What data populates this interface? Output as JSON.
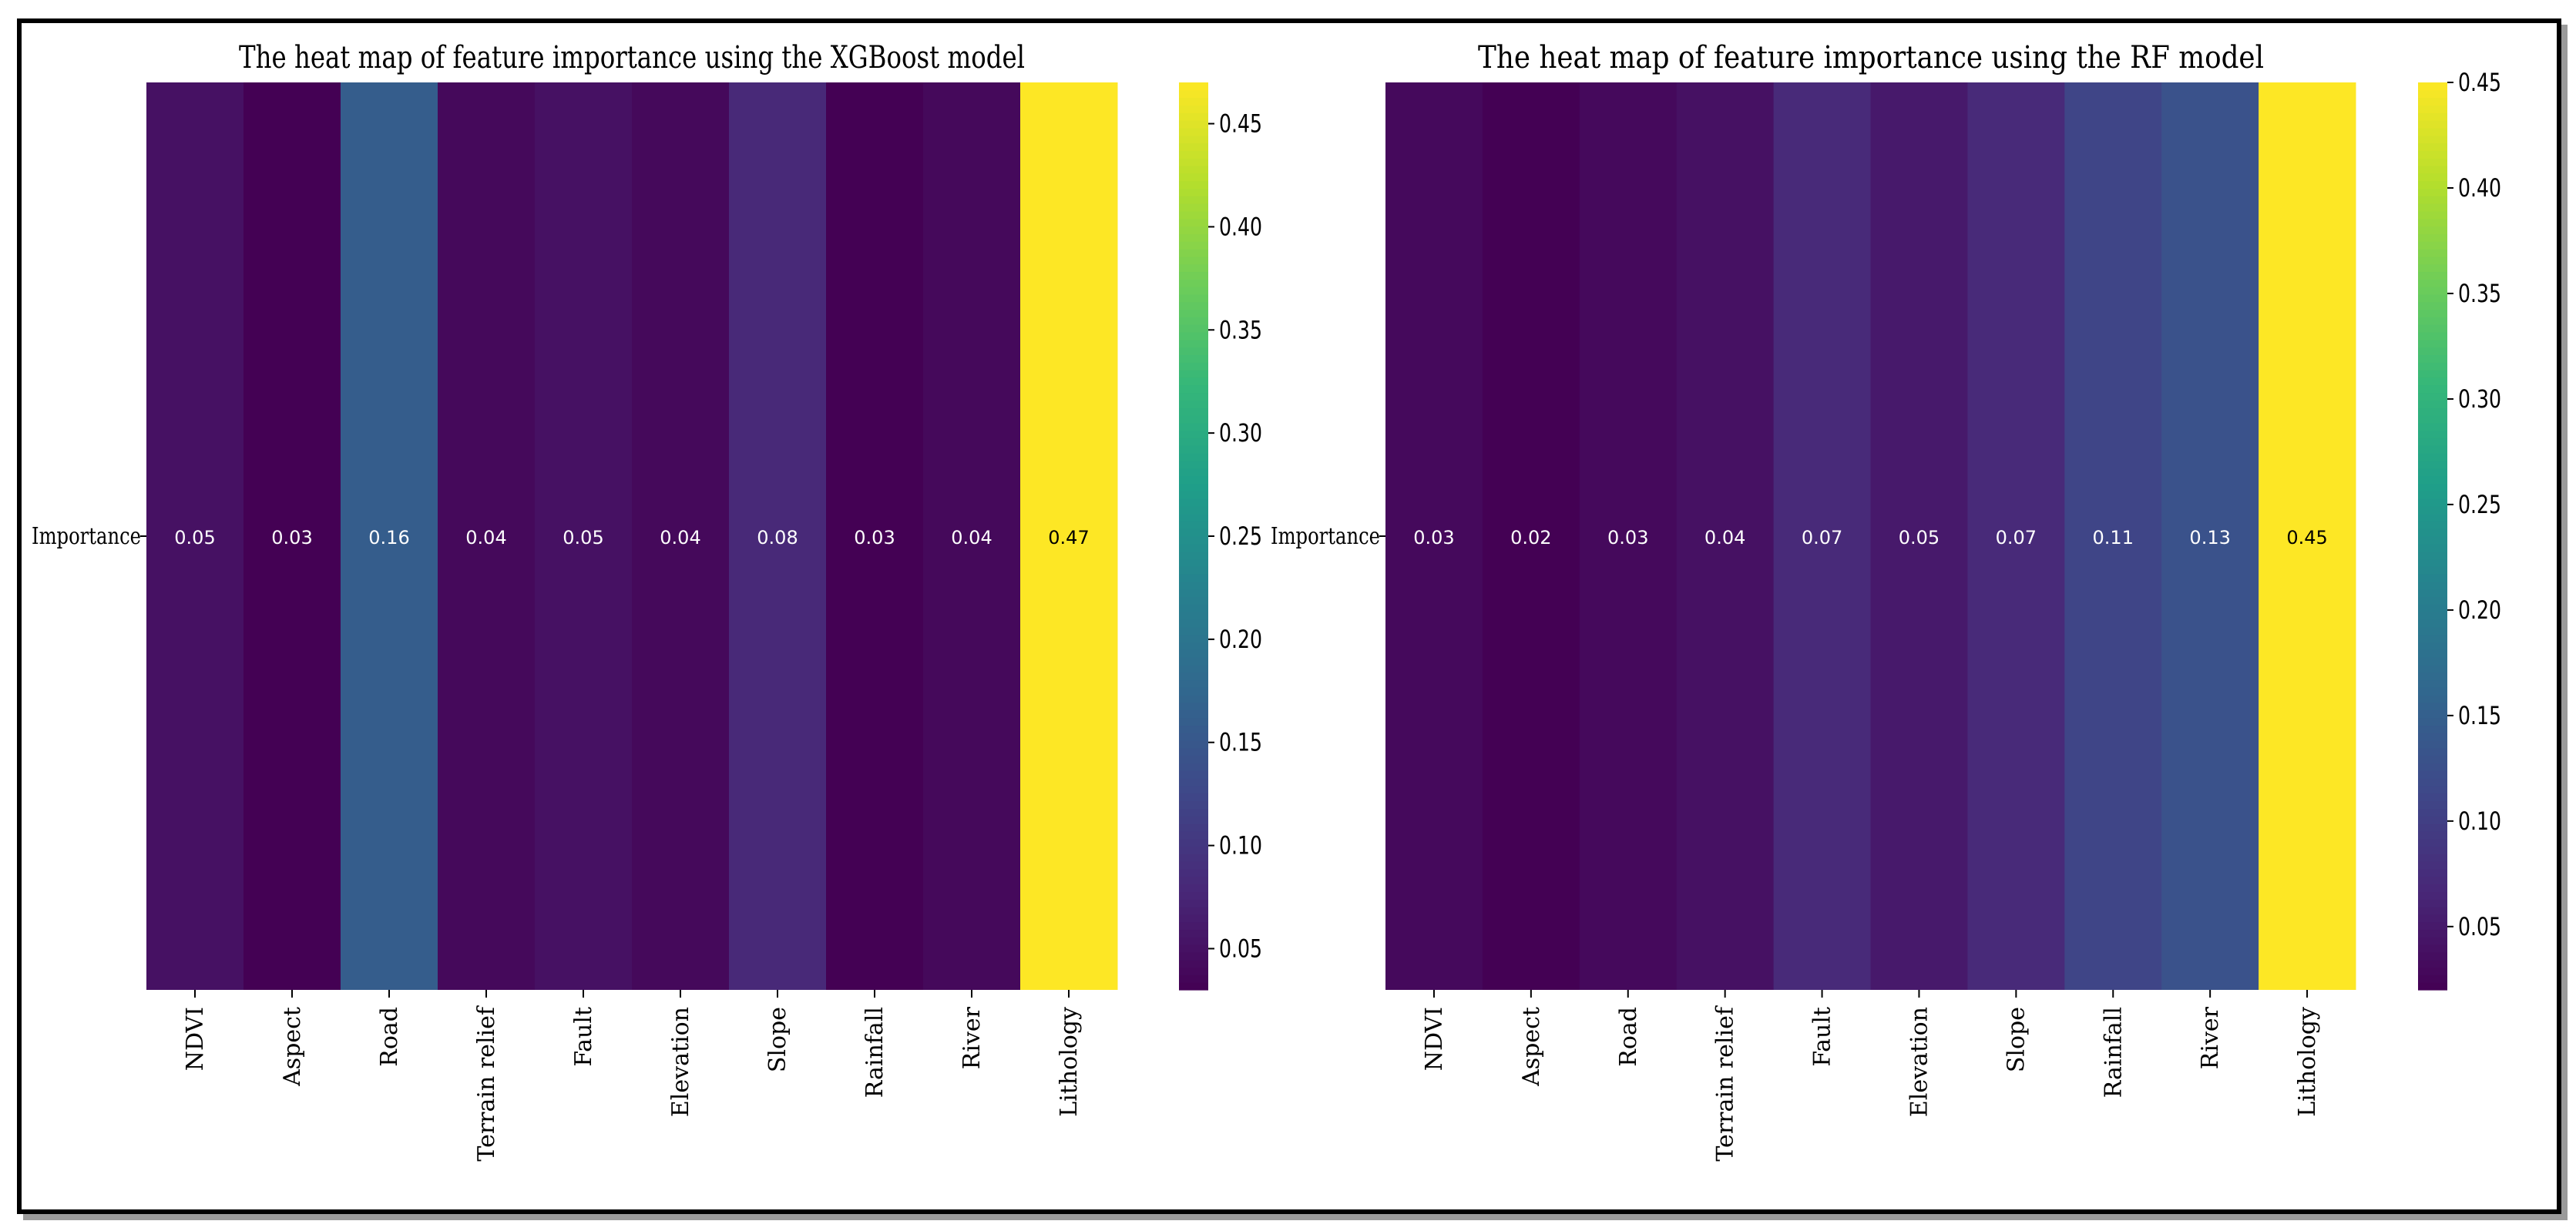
{
  "chart_data": [
    {
      "type": "heatmap",
      "title": "The heat map of feature importance using the XGBoost model",
      "row_labels": [
        "Importance"
      ],
      "categories": [
        "NDVI",
        "Aspect",
        "Road",
        "Terrain relief",
        "Fault",
        "Elevation",
        "Slope",
        "Rainfall",
        "River",
        "Lithology"
      ],
      "values": [
        0.05,
        0.03,
        0.16,
        0.04,
        0.05,
        0.04,
        0.08,
        0.03,
        0.04,
        0.47
      ],
      "cell_labels": [
        "0.05",
        "0.03",
        "0.16",
        "0.04",
        "0.05",
        "0.04",
        "0.08",
        "0.03",
        "0.04",
        "0.47"
      ],
      "colormap": "viridis",
      "colorbar": {
        "vmin": 0.03,
        "vmax": 0.47,
        "ticks": [
          "0.05",
          "0.10",
          "0.15",
          "0.20",
          "0.25",
          "0.30",
          "0.35",
          "0.40",
          "0.45"
        ]
      }
    },
    {
      "type": "heatmap",
      "title": "The heat map of feature importance using the RF model",
      "row_labels": [
        "Importance"
      ],
      "categories": [
        "NDVI",
        "Aspect",
        "Road",
        "Terrain relief",
        "Fault",
        "Elevation",
        "Slope",
        "Rainfall",
        "River",
        "Lithology"
      ],
      "values": [
        0.03,
        0.02,
        0.03,
        0.04,
        0.07,
        0.05,
        0.07,
        0.11,
        0.13,
        0.45
      ],
      "cell_labels": [
        "0.03",
        "0.02",
        "0.03",
        "0.04",
        "0.07",
        "0.05",
        "0.07",
        "0.11",
        "0.13",
        "0.45"
      ],
      "colormap": "viridis",
      "colorbar": {
        "vmin": 0.02,
        "vmax": 0.45,
        "ticks": [
          "0.05",
          "0.10",
          "0.15",
          "0.20",
          "0.25",
          "0.30",
          "0.35",
          "0.40",
          "0.45"
        ]
      }
    }
  ]
}
